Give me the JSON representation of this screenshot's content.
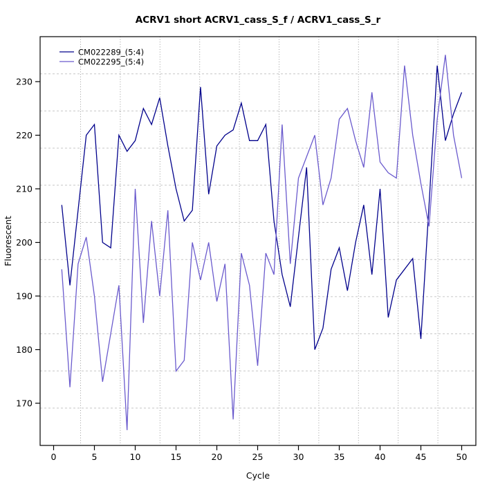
{
  "title": "ACRV1 short ACRV1_cass_S_f / ACRV1_cass_S_r",
  "axes": {
    "xlabel": "Cycle",
    "ylabel": "Fluorescent"
  },
  "legend": {
    "position": "top-left",
    "items": [
      {
        "label": "CM022289_(5:4)",
        "color": "#00008B"
      },
      {
        "label": "CM022295_(5:4)",
        "color": "#6A5ACD"
      }
    ]
  },
  "chart_data": {
    "type": "line",
    "title": "ACRV1 short ACRV1_cass_S_f / ACRV1_cass_S_r",
    "xlabel": "Cycle",
    "ylabel": "Fluorescent",
    "x": [
      1,
      2,
      3,
      4,
      5,
      6,
      7,
      8,
      9,
      10,
      11,
      12,
      13,
      14,
      15,
      16,
      17,
      18,
      19,
      20,
      21,
      22,
      23,
      24,
      25,
      26,
      27,
      28,
      29,
      30,
      31,
      32,
      33,
      34,
      35,
      36,
      37,
      38,
      39,
      40,
      41,
      42,
      43,
      44,
      45,
      46,
      47,
      48,
      49,
      50
    ],
    "series": [
      {
        "name": "CM022289_(5:4)",
        "color": "#00008B",
        "values": [
          207,
          192,
          206,
          220,
          222,
          200,
          199,
          220,
          217,
          219,
          225,
          222,
          227,
          218,
          210,
          204,
          206,
          229,
          209,
          218,
          220,
          221,
          226,
          219,
          219,
          222,
          204,
          194,
          188,
          201,
          214,
          180,
          184,
          195,
          199,
          191,
          200,
          207,
          194,
          210,
          186,
          193,
          195,
          197,
          182,
          207,
          233,
          219,
          224,
          228
        ]
      },
      {
        "name": "CM022295_(5:4)",
        "color": "#6A5ACD",
        "values": [
          195,
          173,
          196,
          201,
          190,
          174,
          183,
          192,
          165,
          210,
          185,
          204,
          190,
          206,
          176,
          178,
          200,
          193,
          200,
          189,
          196,
          167,
          198,
          192,
          177,
          198,
          194,
          222,
          196,
          212,
          216,
          220,
          207,
          212,
          223,
          225,
          219,
          214,
          228,
          215,
          213,
          212,
          233,
          220,
          211,
          203,
          223,
          235,
          220,
          212
        ]
      }
    ],
    "xticks": [
      0,
      5,
      10,
      15,
      20,
      25,
      30,
      35,
      40,
      45,
      50
    ],
    "yticks": [
      170,
      180,
      190,
      200,
      210,
      220,
      230
    ],
    "xlim": [
      -1.65,
      51.7
    ],
    "ylim": [
      162.1,
      238.4
    ],
    "grid": "dotted light-gray, 10x10 divisions not aligned to ticks",
    "legend_position": "top-left"
  }
}
